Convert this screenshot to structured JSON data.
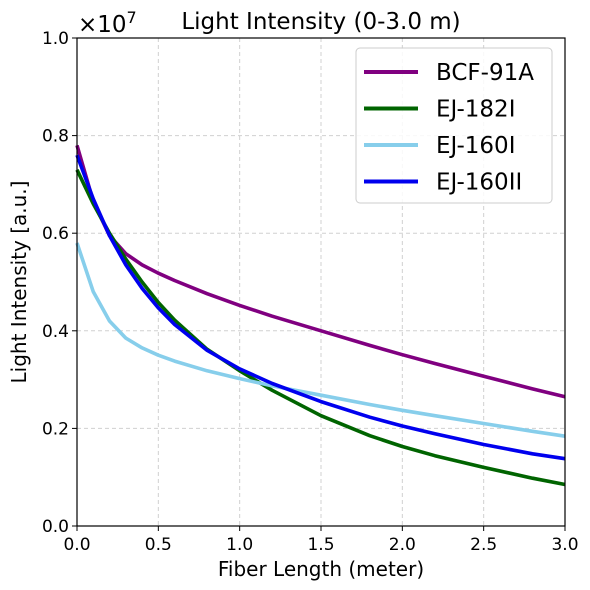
{
  "chart_data": {
    "type": "line",
    "title": "Light Intensity (0-3.0 m)",
    "xlabel": "Fiber Length (meter)",
    "ylabel": "Light Intensity [a.u.]",
    "offset_text": "×10⁷",
    "offset_base": "×10",
    "offset_exponent": "7",
    "xlim": [
      0,
      3.0
    ],
    "ylim": [
      0,
      1.0
    ],
    "xticks": [
      "0.0",
      "0.5",
      "1.0",
      "1.5",
      "2.0",
      "2.5",
      "3.0"
    ],
    "yticks": [
      "0.0",
      "0.2",
      "0.4",
      "0.6",
      "0.8",
      "1.0"
    ],
    "grid": true,
    "legend_position": "top-right",
    "x": [
      0,
      0.1,
      0.2,
      0.3,
      0.4,
      0.5,
      0.6,
      0.8,
      1.0,
      1.2,
      1.5,
      1.8,
      2.0,
      2.2,
      2.5,
      2.8,
      3.0
    ],
    "series": [
      {
        "name": "BCF-91A",
        "color": "#800080",
        "values": [
          0.78,
          0.665,
          0.595,
          0.558,
          0.535,
          0.518,
          0.503,
          0.476,
          0.452,
          0.43,
          0.4,
          0.37,
          0.351,
          0.333,
          0.307,
          0.281,
          0.265
        ]
      },
      {
        "name": "EJ-182I",
        "color": "#006400",
        "values": [
          0.73,
          0.66,
          0.6,
          0.547,
          0.5,
          0.458,
          0.422,
          0.362,
          0.318,
          0.278,
          0.226,
          0.185,
          0.163,
          0.144,
          0.12,
          0.098,
          0.085
        ]
      },
      {
        "name": "EJ-160I",
        "color": "#87ceeb",
        "values": [
          0.58,
          0.48,
          0.42,
          0.385,
          0.365,
          0.35,
          0.338,
          0.318,
          0.302,
          0.287,
          0.268,
          0.249,
          0.237,
          0.226,
          0.21,
          0.194,
          0.184
        ]
      },
      {
        "name": "EJ-160II",
        "color": "#0000ee",
        "values": [
          0.76,
          0.67,
          0.595,
          0.535,
          0.487,
          0.447,
          0.413,
          0.36,
          0.322,
          0.292,
          0.255,
          0.223,
          0.205,
          0.189,
          0.167,
          0.148,
          0.138
        ]
      }
    ]
  }
}
